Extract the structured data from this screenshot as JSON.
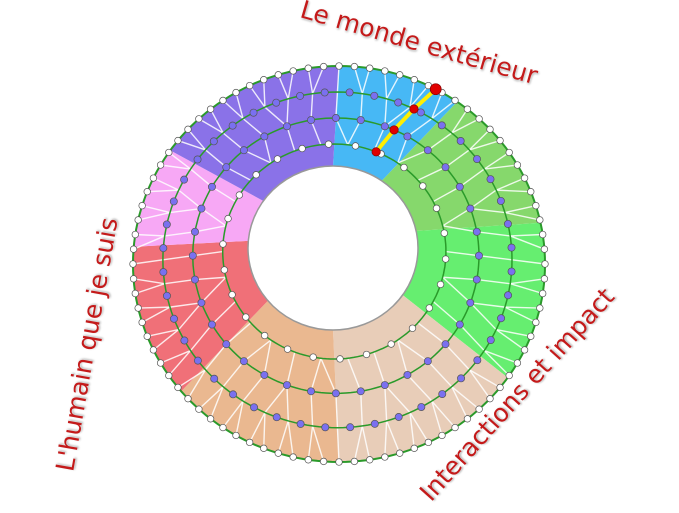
{
  "labels": {
    "top": "Le monde extérieur",
    "left": "L'humain que je suis",
    "bottom_right": "Interactions et impact"
  },
  "colors": {
    "label": "#c41a1a",
    "ring_line": "#2a9a2a",
    "highlight_path": "#ffee00",
    "highlight_dot": "#e00000",
    "inner_dot": "#7a70f0",
    "edge_dot": "#ffffff"
  },
  "sectors": [
    {
      "name": "cyan",
      "color": "#47b8f5"
    },
    {
      "name": "dark-green",
      "color": "#86d86c"
    },
    {
      "name": "green",
      "color": "#66ee70"
    },
    {
      "name": "light-peach",
      "color": "#e8cdb8"
    },
    {
      "name": "peach",
      "color": "#eab890"
    },
    {
      "name": "red",
      "color": "#f07078"
    },
    {
      "name": "pink",
      "color": "#f7a8f5"
    },
    {
      "name": "purple",
      "color": "#8a72e8"
    }
  ]
}
